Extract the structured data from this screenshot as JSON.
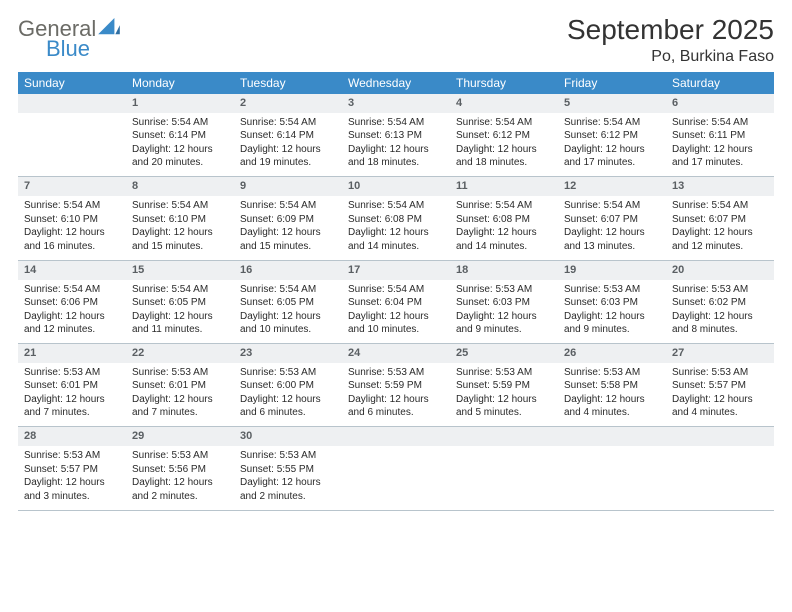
{
  "brand": {
    "word1": "General",
    "word2": "Blue",
    "color_gray": "#6b6b66",
    "color_blue": "#3a8ac8"
  },
  "title": "September 2025",
  "location": "Po, Burkina Faso",
  "header_bg": "#3a8ac8",
  "daynum_bg": "#eef0f2",
  "divider_color": "#b8c4cc",
  "weekdays": [
    "Sunday",
    "Monday",
    "Tuesday",
    "Wednesday",
    "Thursday",
    "Friday",
    "Saturday"
  ],
  "weeks": [
    {
      "nums": [
        "",
        "1",
        "2",
        "3",
        "4",
        "5",
        "6"
      ],
      "cells": [
        "",
        "Sunrise: 5:54 AM\nSunset: 6:14 PM\nDaylight: 12 hours and 20 minutes.",
        "Sunrise: 5:54 AM\nSunset: 6:14 PM\nDaylight: 12 hours and 19 minutes.",
        "Sunrise: 5:54 AM\nSunset: 6:13 PM\nDaylight: 12 hours and 18 minutes.",
        "Sunrise: 5:54 AM\nSunset: 6:12 PM\nDaylight: 12 hours and 18 minutes.",
        "Sunrise: 5:54 AM\nSunset: 6:12 PM\nDaylight: 12 hours and 17 minutes.",
        "Sunrise: 5:54 AM\nSunset: 6:11 PM\nDaylight: 12 hours and 17 minutes."
      ]
    },
    {
      "nums": [
        "7",
        "8",
        "9",
        "10",
        "11",
        "12",
        "13"
      ],
      "cells": [
        "Sunrise: 5:54 AM\nSunset: 6:10 PM\nDaylight: 12 hours and 16 minutes.",
        "Sunrise: 5:54 AM\nSunset: 6:10 PM\nDaylight: 12 hours and 15 minutes.",
        "Sunrise: 5:54 AM\nSunset: 6:09 PM\nDaylight: 12 hours and 15 minutes.",
        "Sunrise: 5:54 AM\nSunset: 6:08 PM\nDaylight: 12 hours and 14 minutes.",
        "Sunrise: 5:54 AM\nSunset: 6:08 PM\nDaylight: 12 hours and 14 minutes.",
        "Sunrise: 5:54 AM\nSunset: 6:07 PM\nDaylight: 12 hours and 13 minutes.",
        "Sunrise: 5:54 AM\nSunset: 6:07 PM\nDaylight: 12 hours and 12 minutes."
      ]
    },
    {
      "nums": [
        "14",
        "15",
        "16",
        "17",
        "18",
        "19",
        "20"
      ],
      "cells": [
        "Sunrise: 5:54 AM\nSunset: 6:06 PM\nDaylight: 12 hours and 12 minutes.",
        "Sunrise: 5:54 AM\nSunset: 6:05 PM\nDaylight: 12 hours and 11 minutes.",
        "Sunrise: 5:54 AM\nSunset: 6:05 PM\nDaylight: 12 hours and 10 minutes.",
        "Sunrise: 5:54 AM\nSunset: 6:04 PM\nDaylight: 12 hours and 10 minutes.",
        "Sunrise: 5:53 AM\nSunset: 6:03 PM\nDaylight: 12 hours and 9 minutes.",
        "Sunrise: 5:53 AM\nSunset: 6:03 PM\nDaylight: 12 hours and 9 minutes.",
        "Sunrise: 5:53 AM\nSunset: 6:02 PM\nDaylight: 12 hours and 8 minutes."
      ]
    },
    {
      "nums": [
        "21",
        "22",
        "23",
        "24",
        "25",
        "26",
        "27"
      ],
      "cells": [
        "Sunrise: 5:53 AM\nSunset: 6:01 PM\nDaylight: 12 hours and 7 minutes.",
        "Sunrise: 5:53 AM\nSunset: 6:01 PM\nDaylight: 12 hours and 7 minutes.",
        "Sunrise: 5:53 AM\nSunset: 6:00 PM\nDaylight: 12 hours and 6 minutes.",
        "Sunrise: 5:53 AM\nSunset: 5:59 PM\nDaylight: 12 hours and 6 minutes.",
        "Sunrise: 5:53 AM\nSunset: 5:59 PM\nDaylight: 12 hours and 5 minutes.",
        "Sunrise: 5:53 AM\nSunset: 5:58 PM\nDaylight: 12 hours and 4 minutes.",
        "Sunrise: 5:53 AM\nSunset: 5:57 PM\nDaylight: 12 hours and 4 minutes."
      ]
    },
    {
      "nums": [
        "28",
        "29",
        "30",
        "",
        "",
        "",
        ""
      ],
      "cells": [
        "Sunrise: 5:53 AM\nSunset: 5:57 PM\nDaylight: 12 hours and 3 minutes.",
        "Sunrise: 5:53 AM\nSunset: 5:56 PM\nDaylight: 12 hours and 2 minutes.",
        "Sunrise: 5:53 AM\nSunset: 5:55 PM\nDaylight: 12 hours and 2 minutes.",
        "",
        "",
        "",
        ""
      ]
    }
  ]
}
